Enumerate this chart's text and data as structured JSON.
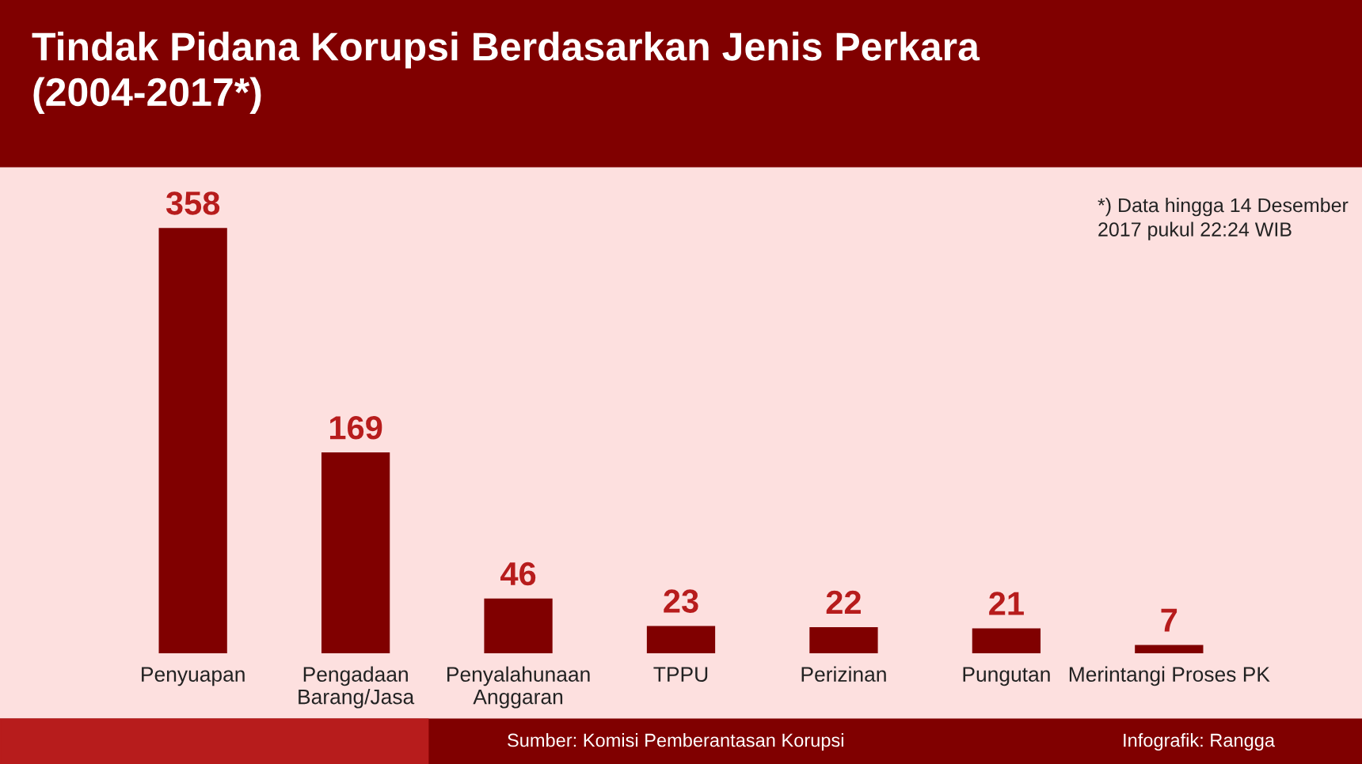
{
  "chart_data": {
    "type": "bar",
    "title": "Tindak Pidana Korupsi Berdasarkan Jenis Perkara\n(2004-2017*)",
    "categories": [
      "Penyuapan",
      "Pengadaan\nBarang/Jasa",
      "Penyalahunaan\nAnggaran",
      "TPPU",
      "Perizinan",
      "Pungutan",
      "Merintangi Proses PK"
    ],
    "values": [
      358,
      169,
      46,
      23,
      22,
      21,
      7
    ],
    "color": "#800000",
    "data_labels": true,
    "grid": false,
    "legend": false,
    "annotations": [
      "*) Data hingga 14 Desember\n2017 pukul 22:24 WIB",
      "Sumber: Komisi Pemberantasan Korupsi",
      "Infografik: Rangga"
    ]
  }
}
